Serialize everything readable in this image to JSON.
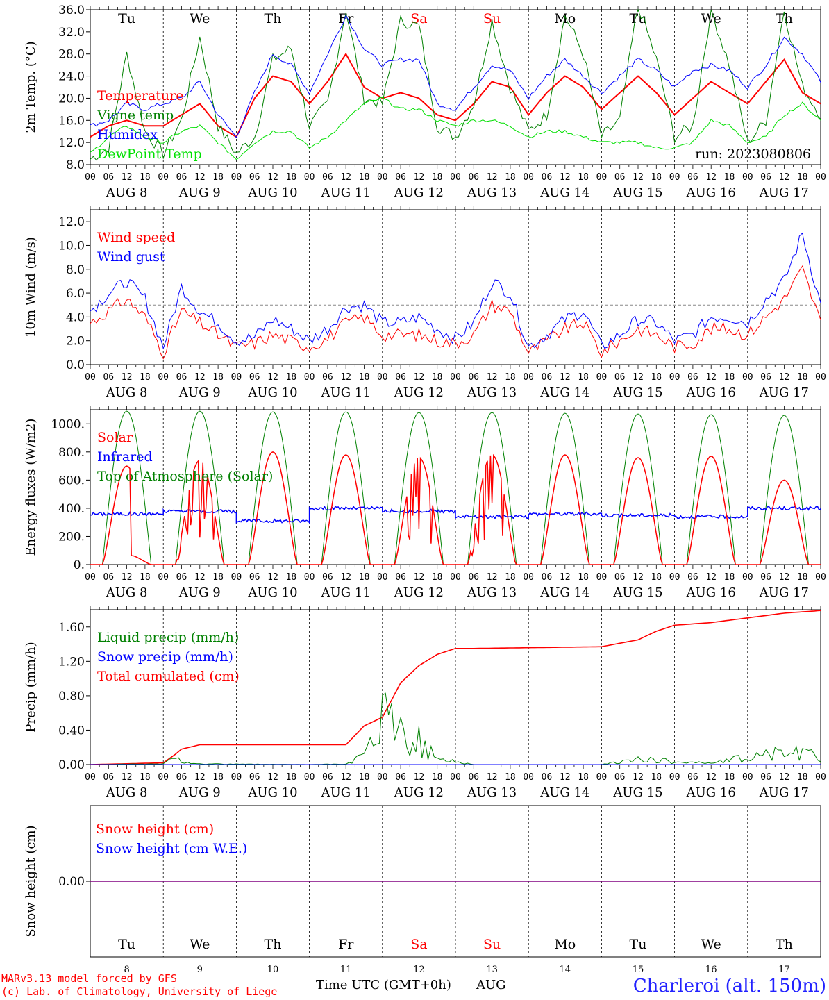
{
  "days": [
    "8",
    "9",
    "10",
    "11",
    "12",
    "13",
    "14",
    "15",
    "16",
    "17"
  ],
  "month": "AUG",
  "weekdays": [
    {
      "label": "Tu",
      "weekend": false
    },
    {
      "label": "We",
      "weekend": false
    },
    {
      "label": "Th",
      "weekend": false
    },
    {
      "label": "Fr",
      "weekend": false
    },
    {
      "label": "Sa",
      "weekend": true
    },
    {
      "label": "Su",
      "weekend": true
    },
    {
      "label": "Mo",
      "weekend": false
    },
    {
      "label": "Tu",
      "weekend": false
    },
    {
      "label": "We",
      "weekend": false
    },
    {
      "label": "Th",
      "weekend": false
    }
  ],
  "hour_ticks": [
    "00",
    "06",
    "12",
    "18"
  ],
  "hour_end": "00",
  "run_label": "run: 2023080806",
  "footer": {
    "model": "MARv3.13 model forced by GFS",
    "copyright": "(c) Lab. of Climatology, University of Liege",
    "xlabel": "Time UTC (GMT+0h)",
    "xmonth": "AUG",
    "station": "Charleroi (alt. 150m)"
  },
  "colors": {
    "red": "#ff0000",
    "green": "#008000",
    "blue": "#0000ff",
    "lightgreen": "#00e000",
    "purple": "#800080",
    "weekend": "#ff0000"
  },
  "chart_data": [
    {
      "type": "line",
      "ylabel": "2m Temp. (°C)",
      "ylim": [
        8,
        36
      ],
      "yticks": [
        "8.0",
        "12.0",
        "16.0",
        "20.0",
        "24.0",
        "28.0",
        "32.0",
        "36.0"
      ],
      "x": [
        0,
        6,
        12,
        18,
        24,
        30,
        36,
        42,
        48,
        54,
        60,
        66,
        72,
        78,
        84,
        90,
        96,
        102,
        108,
        114,
        120,
        126,
        132,
        138,
        144,
        150,
        156,
        162,
        168,
        174,
        180,
        186,
        192,
        198,
        204,
        210,
        216,
        222,
        228,
        234,
        240
      ],
      "legend": [
        "Temperature",
        "Vigne temp",
        "Humidex",
        "DewPoint Temp"
      ],
      "series": [
        {
          "name": "Temperature",
          "color": "red",
          "values": [
            13,
            15,
            16,
            15,
            15,
            17,
            19,
            15,
            13,
            20,
            24,
            23,
            19,
            23,
            28,
            22,
            20,
            21,
            20,
            17,
            16,
            19,
            23,
            22,
            17,
            21,
            24,
            22,
            18,
            21,
            24,
            21,
            17,
            20,
            23,
            21,
            19,
            23,
            27,
            21,
            19
          ]
        },
        {
          "name": "Vigne temp",
          "color": "green",
          "values": [
            9,
            11,
            28,
            14,
            10,
            16,
            31,
            15,
            10,
            13,
            27,
            29,
            15,
            19,
            36,
            20,
            19,
            34,
            33,
            15,
            13,
            19,
            34,
            22,
            14,
            17,
            35,
            28,
            13,
            16,
            37,
            27,
            13,
            15,
            36,
            26,
            12,
            16,
            36,
            22,
            17
          ]
        },
        {
          "name": "Humidex",
          "color": "blue",
          "values": [
            15,
            16,
            19,
            18,
            19,
            20,
            23,
            17,
            13,
            21,
            28,
            26,
            21,
            28,
            35,
            29,
            26,
            27,
            27,
            19,
            18,
            22,
            26,
            25,
            20,
            24,
            27,
            24,
            21,
            24,
            27,
            25,
            22,
            25,
            26,
            25,
            22,
            26,
            31,
            28,
            23
          ]
        },
        {
          "name": "DewPoint Temp",
          "color": "lightgreen",
          "values": [
            10,
            13,
            15,
            13,
            12,
            14,
            15,
            12,
            9,
            12,
            14,
            14,
            11,
            13,
            16,
            19,
            20,
            18,
            18,
            16,
            15,
            16,
            16,
            15,
            13,
            14,
            14,
            13,
            12,
            12,
            12,
            11,
            11,
            12,
            16,
            15,
            12,
            13,
            17,
            19,
            16
          ]
        }
      ]
    },
    {
      "type": "line",
      "ylabel": "10m Wind (m/s)",
      "ylim": [
        0,
        13
      ],
      "yticks": [
        "0.0",
        "2.0",
        "4.0",
        "6.0",
        "8.0",
        "10.0",
        "12.0"
      ],
      "reference_line": 5,
      "x": [
        0,
        6,
        12,
        18,
        24,
        30,
        36,
        42,
        48,
        54,
        60,
        66,
        72,
        78,
        84,
        90,
        96,
        102,
        108,
        114,
        120,
        126,
        132,
        138,
        144,
        150,
        156,
        162,
        168,
        174,
        180,
        186,
        192,
        198,
        204,
        210,
        216,
        222,
        228,
        234,
        240
      ],
      "legend": [
        "Wind speed",
        "Wind gust"
      ],
      "series": [
        {
          "name": "Wind speed",
          "color": "red",
          "values": [
            3.5,
            4.5,
            5.5,
            4,
            1,
            4.5,
            3.5,
            2.5,
            1.5,
            1.8,
            2.5,
            2,
            1.5,
            2.2,
            3.5,
            4,
            2.5,
            2.5,
            2.5,
            2,
            1.8,
            2.5,
            5,
            4.5,
            1,
            2,
            3,
            3.5,
            1,
            2,
            3,
            2.5,
            1.5,
            1.8,
            3,
            3,
            2.5,
            4,
            5.5,
            8,
            3.5
          ]
        },
        {
          "name": "Wind gust",
          "color": "blue",
          "values": [
            4.5,
            6,
            7,
            5.5,
            1.5,
            6.5,
            4.5,
            3.5,
            2,
            2.3,
            3.8,
            3,
            2,
            3,
            4.8,
            5,
            3.5,
            3.5,
            4,
            3,
            2.2,
            3.5,
            7,
            6,
            1.5,
            2.5,
            3.8,
            4.5,
            1.5,
            2.5,
            3.8,
            3.5,
            2,
            2.5,
            4,
            4,
            3.5,
            5.5,
            7,
            11,
            5
          ]
        }
      ]
    },
    {
      "type": "line",
      "ylabel": "Energy fluxes (W/m2)",
      "ylim": [
        0,
        1100
      ],
      "yticks": [
        "0.",
        "200.",
        "400.",
        "600.",
        "800.",
        "1000."
      ],
      "legend": [
        "Solar",
        "Infrared",
        "Top of Atmosphere (Solar)"
      ],
      "daily_peaks": {
        "Top of Atmosphere (Solar)": [
          1090,
          1090,
          1085,
          1085,
          1080,
          1080,
          1075,
          1070,
          1065,
          1060
        ],
        "Solar": [
          700,
          740,
          800,
          780,
          760,
          780,
          780,
          760,
          770,
          600
        ],
        "Infrared_mean": [
          360,
          380,
          310,
          400,
          380,
          340,
          360,
          350,
          340,
          400
        ]
      },
      "series": [
        {
          "name": "Solar",
          "color": "red"
        },
        {
          "name": "Infrared",
          "color": "blue"
        },
        {
          "name": "Top of Atmosphere (Solar)",
          "color": "green"
        }
      ]
    },
    {
      "type": "line",
      "ylabel": "Precip (mm/h)",
      "ylim": [
        0,
        1.8
      ],
      "yticks": [
        "0.00",
        "0.40",
        "0.80",
        "1.20",
        "1.60"
      ],
      "legend": [
        "Liquid precip (mm/h)",
        "Snow precip (mm/h)",
        "Total cumulated (cm)"
      ],
      "x": [
        0,
        24,
        28,
        30,
        36,
        72,
        84,
        90,
        96,
        102,
        108,
        114,
        120,
        126,
        168,
        180,
        186,
        192,
        204,
        228,
        240
      ],
      "series": [
        {
          "name": "Total cumulated (cm)",
          "color": "red",
          "values": [
            0,
            0.02,
            0.12,
            0.18,
            0.23,
            0.23,
            0.23,
            0.45,
            0.55,
            0.95,
            1.15,
            1.28,
            1.35,
            1.35,
            1.37,
            1.45,
            1.55,
            1.62,
            1.65,
            1.76,
            1.79
          ]
        },
        {
          "name": "Liquid precip (mm/h)",
          "color": "green",
          "values": [
            0,
            0.01,
            0.12,
            0.06,
            0.01,
            0,
            0.01,
            0.12,
            0.7,
            0.5,
            0.35,
            0.08,
            0.05,
            0,
            0,
            0.08,
            0.06,
            0.05,
            0.02,
            0.2,
            0.12
          ]
        },
        {
          "name": "Snow precip (mm/h)",
          "color": "blue",
          "values": [
            0,
            0,
            0,
            0,
            0,
            0,
            0,
            0,
            0,
            0,
            0,
            0,
            0,
            0,
            0,
            0,
            0,
            0,
            0,
            0,
            0
          ]
        }
      ]
    },
    {
      "type": "line",
      "ylabel": "Snow height (cm)",
      "ylim": [
        -1,
        1
      ],
      "yticks": [
        "0.00"
      ],
      "legend": [
        "Snow height (cm)",
        "Snow height (cm W.E.)"
      ],
      "series": [
        {
          "name": "Snow height (cm)",
          "color": "red",
          "values": [
            0,
            0
          ]
        },
        {
          "name": "Snow height (cm W.E.)",
          "color": "blue",
          "values": [
            0,
            0
          ]
        }
      ]
    }
  ]
}
